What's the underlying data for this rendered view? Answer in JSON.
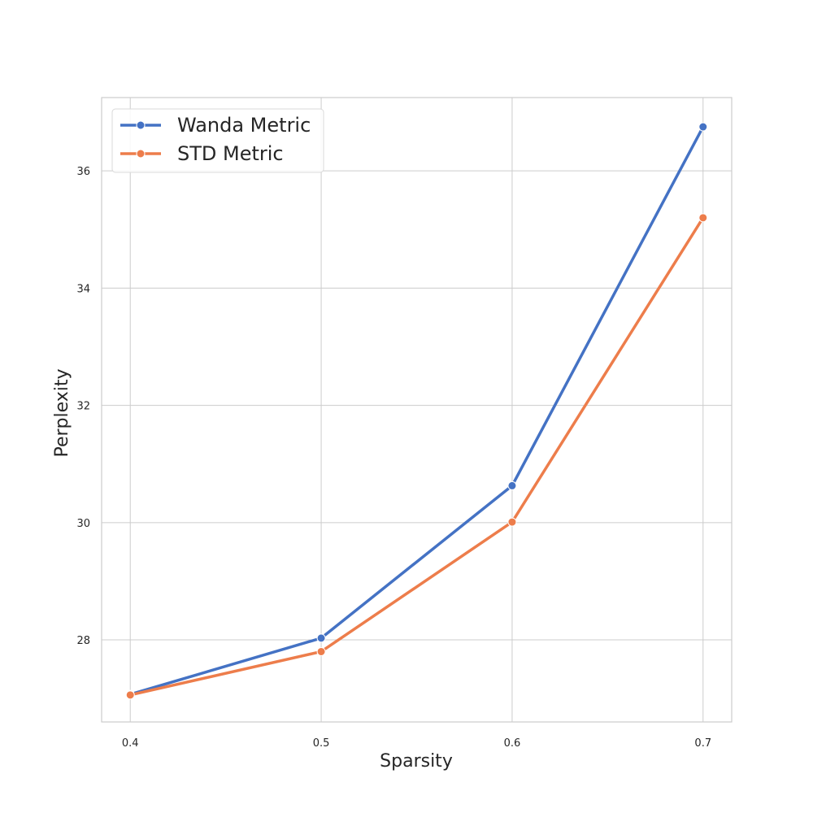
{
  "chart_data": {
    "type": "line",
    "x": [
      0.4,
      0.5,
      0.6,
      0.7
    ],
    "x_tick_labels": [
      "0.4",
      "0.5",
      "0.6",
      "0.7"
    ],
    "series": [
      {
        "name": "Wanda Metric",
        "color": "#4472c4",
        "values": [
          27.07,
          28.03,
          30.63,
          36.75
        ]
      },
      {
        "name": "STD Metric",
        "color": "#ed7d4b",
        "values": [
          27.06,
          27.8,
          30.01,
          35.2
        ]
      }
    ],
    "xlabel": "Sparsity",
    "ylabel": "Perplexity",
    "xlim": [
      0.385,
      0.715
    ],
    "ylim": [
      26.6,
      37.25
    ],
    "y_ticks": [
      28,
      30,
      32,
      34,
      36
    ],
    "y_tick_labels": [
      "28",
      "30",
      "32",
      "34",
      "36"
    ],
    "grid": true,
    "legend_position": "top-left"
  }
}
